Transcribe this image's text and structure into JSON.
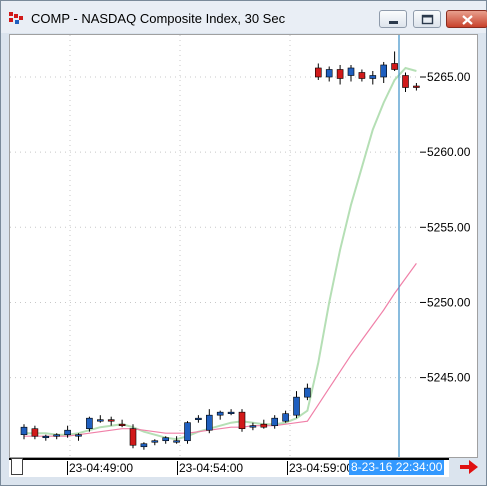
{
  "window": {
    "title": "COMP - NASDAQ Composite Index, 30 Sec",
    "icons": {
      "app": "chart-app-icon",
      "minimize": "minimize-icon",
      "maximize": "maximize-icon",
      "close": "close-icon"
    }
  },
  "colors": {
    "up_candle": "#1f5fbf",
    "down_candle": "#d11a1a",
    "ma_fast": "#b5dfb5",
    "ma_slow": "#f080a8",
    "cursor": "#3b8fc7",
    "grid": "#c8c8c8",
    "cursor_label_bg": "#3399ff",
    "nav_arrow": "#e01010"
  },
  "axis": {
    "y_ticks": [
      "5265.00",
      "5260.00",
      "5255.00",
      "5250.00",
      "5245.00"
    ],
    "x_ticks": [
      "23-04:49:00",
      "23-04:54:00",
      "23-04:59:00"
    ],
    "cursor_label": "8-23-16 22:34:00"
  },
  "nav": {
    "next_icon": "right-arrow-icon"
  },
  "chart_data": {
    "type": "candlestick",
    "title": "COMP - NASDAQ Composite Index, 30 Sec",
    "ylim": [
      5240.3,
      5267.8
    ],
    "y_tick_values": [
      5265,
      5260,
      5255,
      5250,
      5245
    ],
    "x_tick_labels": [
      "23-04:49:00",
      "23-04:54:00",
      "23-04:59:00"
    ],
    "candles": [
      {
        "o": 5241.2,
        "h": 5241.9,
        "l": 5240.9,
        "c": 5241.7
      },
      {
        "o": 5241.6,
        "h": 5241.8,
        "l": 5240.9,
        "c": 5241.1
      },
      {
        "o": 5241.0,
        "h": 5241.2,
        "l": 5240.8,
        "c": 5241.1
      },
      {
        "o": 5241.1,
        "h": 5241.3,
        "l": 5240.9,
        "c": 5241.2
      },
      {
        "o": 5241.2,
        "h": 5241.8,
        "l": 5241.0,
        "c": 5241.5
      },
      {
        "o": 5241.1,
        "h": 5241.3,
        "l": 5240.8,
        "c": 5241.2
      },
      {
        "o": 5241.6,
        "h": 5242.4,
        "l": 5241.4,
        "c": 5242.3
      },
      {
        "o": 5242.2,
        "h": 5242.5,
        "l": 5242.0,
        "c": 5242.2
      },
      {
        "o": 5242.2,
        "h": 5242.4,
        "l": 5241.8,
        "c": 5242.1
      },
      {
        "o": 5241.9,
        "h": 5242.2,
        "l": 5241.7,
        "c": 5241.8
      },
      {
        "o": 5241.6,
        "h": 5241.9,
        "l": 5240.3,
        "c": 5240.5
      },
      {
        "o": 5240.4,
        "h": 5240.7,
        "l": 5240.2,
        "c": 5240.6
      },
      {
        "o": 5240.7,
        "h": 5240.9,
        "l": 5240.5,
        "c": 5240.8
      },
      {
        "o": 5240.8,
        "h": 5241.1,
        "l": 5240.6,
        "c": 5241.0
      },
      {
        "o": 5240.8,
        "h": 5241.1,
        "l": 5240.6,
        "c": 5240.8
      },
      {
        "o": 5240.8,
        "h": 5242.1,
        "l": 5240.6,
        "c": 5242.0
      },
      {
        "o": 5242.2,
        "h": 5242.5,
        "l": 5242.0,
        "c": 5242.3
      },
      {
        "o": 5241.5,
        "h": 5242.9,
        "l": 5241.3,
        "c": 5242.5
      },
      {
        "o": 5242.5,
        "h": 5242.8,
        "l": 5242.2,
        "c": 5242.7
      },
      {
        "o": 5242.7,
        "h": 5242.9,
        "l": 5242.5,
        "c": 5242.7
      },
      {
        "o": 5242.7,
        "h": 5242.9,
        "l": 5241.4,
        "c": 5241.6
      },
      {
        "o": 5241.7,
        "h": 5242.0,
        "l": 5241.5,
        "c": 5241.8
      },
      {
        "o": 5241.9,
        "h": 5242.2,
        "l": 5241.6,
        "c": 5241.7
      },
      {
        "o": 5241.8,
        "h": 5242.5,
        "l": 5241.6,
        "c": 5242.3
      },
      {
        "o": 5242.1,
        "h": 5242.8,
        "l": 5242.0,
        "c": 5242.6
      },
      {
        "o": 5242.5,
        "h": 5244.1,
        "l": 5242.3,
        "c": 5243.7
      },
      {
        "o": 5243.7,
        "h": 5244.6,
        "l": 5243.5,
        "c": 5244.3
      },
      {
        "o": 5265.6,
        "h": 5265.9,
        "l": 5264.8,
        "c": 5265.0
      },
      {
        "o": 5265.0,
        "h": 5265.7,
        "l": 5264.7,
        "c": 5265.5
      },
      {
        "o": 5265.5,
        "h": 5265.8,
        "l": 5264.5,
        "c": 5264.9
      },
      {
        "o": 5265.1,
        "h": 5265.8,
        "l": 5264.7,
        "c": 5265.6
      },
      {
        "o": 5265.3,
        "h": 5265.5,
        "l": 5264.7,
        "c": 5264.9
      },
      {
        "o": 5264.9,
        "h": 5265.4,
        "l": 5264.5,
        "c": 5265.1
      },
      {
        "o": 5265.0,
        "h": 5266.0,
        "l": 5264.6,
        "c": 5265.8
      },
      {
        "o": 5265.9,
        "h": 5266.7,
        "l": 5265.4,
        "c": 5265.5
      },
      {
        "o": 5265.1,
        "h": 5265.3,
        "l": 5264.0,
        "c": 5264.3
      },
      {
        "o": 5264.4,
        "h": 5264.6,
        "l": 5264.1,
        "c": 5264.3
      }
    ],
    "series": [
      {
        "values": [
          5241.3,
          5241.3,
          5241.3,
          5241.2,
          5241.2,
          5241.3,
          5241.5,
          5241.7,
          5241.8,
          5241.9,
          5241.7,
          5241.4,
          5241.2,
          5241.0,
          5240.9,
          5241.1,
          5241.4,
          5241.6,
          5241.8,
          5242.0,
          5242.1,
          5242.0,
          5241.9,
          5241.9,
          5242.0,
          5242.3,
          5242.8,
          5246.0,
          5250.0,
          5253.5,
          5256.5,
          5259.0,
          5261.5,
          5263.3,
          5264.8,
          5265.6,
          5265.4
        ]
      },
      {
        "values": [
          5241.1,
          5241.1,
          5241.1,
          5241.1,
          5241.1,
          5241.2,
          5241.3,
          5241.4,
          5241.5,
          5241.6,
          5241.6,
          5241.5,
          5241.4,
          5241.3,
          5241.3,
          5241.3,
          5241.4,
          5241.5,
          5241.6,
          5241.7,
          5241.7,
          5241.8,
          5241.8,
          5241.8,
          5241.9,
          5242.0,
          5242.1,
          5243.2,
          5244.3,
          5245.4,
          5246.5,
          5247.5,
          5248.5,
          5249.5,
          5250.6,
          5251.6,
          5252.6
        ]
      }
    ],
    "grid": true,
    "cursor_label": "8-23-16 22:34:00"
  }
}
